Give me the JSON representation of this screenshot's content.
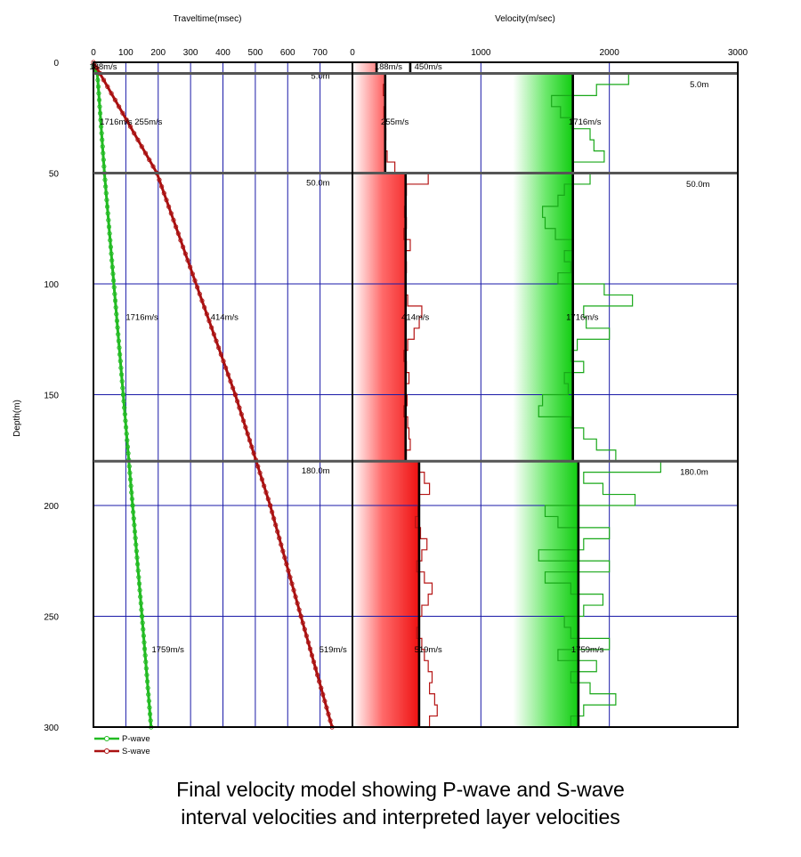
{
  "chart_data": [
    {
      "type": "line",
      "xlabel": "Traveltime(msec)",
      "ylabel": "Depth(m)",
      "xlim": [
        0,
        800
      ],
      "ylim": [
        300,
        0
      ],
      "x_ticks": [
        0,
        100,
        200,
        300,
        400,
        500,
        600,
        700
      ],
      "y_ticks": [
        0,
        50,
        100,
        150,
        200,
        250,
        300
      ],
      "grid": true,
      "legend_position": "bottom-left",
      "series": [
        {
          "name": "P-wave",
          "color": "#22bb22",
          "points": [
            [
              0,
              2
            ],
            [
              12,
              5
            ],
            [
              34,
              50
            ],
            [
              92,
              150
            ],
            [
              121,
              200
            ],
            [
              150,
              250
            ],
            [
              178,
              300
            ]
          ]
        },
        {
          "name": "S-wave",
          "color": "#aa1111",
          "points": [
            [
              0,
              0
            ],
            [
              20,
              5
            ],
            [
              196,
              50
            ],
            [
              438,
              150
            ],
            [
              546,
              200
            ],
            [
              641,
              250
            ],
            [
              737,
              300
            ]
          ]
        }
      ],
      "layer_boundaries": [
        5,
        50,
        180
      ],
      "layer_labels": [
        "5.0m",
        "50.0m",
        "180.0m"
      ],
      "annotations": [
        {
          "text": "188m/s",
          "x": 30,
          "y": 2
        },
        {
          "text": "1716m/s",
          "x": 70,
          "y": 27
        },
        {
          "text": "255m/s",
          "x": 170,
          "y": 27
        },
        {
          "text": "1716m/s",
          "x": 150,
          "y": 115
        },
        {
          "text": "414m/s",
          "x": 405,
          "y": 115
        },
        {
          "text": "1759m/s",
          "x": 230,
          "y": 265
        },
        {
          "text": "519m/s",
          "x": 740,
          "y": 265
        }
      ]
    },
    {
      "type": "line",
      "xlabel": "Velocity(m/sec)",
      "ylabel": "Depth(m)",
      "xlim": [
        0,
        3000
      ],
      "ylim": [
        300,
        0
      ],
      "x_ticks": [
        0,
        1000,
        2000,
        3000
      ],
      "grid": true,
      "layer_velocities": {
        "S-wave": [
          {
            "from": 0,
            "to": 5,
            "value": 188
          },
          {
            "from": 5,
            "to": 50,
            "value": 255
          },
          {
            "from": 50,
            "to": 180,
            "value": 414
          },
          {
            "from": 180,
            "to": 300,
            "value": 519
          }
        ],
        "P-wave": [
          {
            "from": 0,
            "to": 5,
            "value": 450
          },
          {
            "from": 5,
            "to": 50,
            "value": 1716
          },
          {
            "from": 50,
            "to": 180,
            "value": 1716
          },
          {
            "from": 180,
            "to": 300,
            "value": 1759
          }
        ]
      },
      "s_interval_velocity": [
        [
          0,
          188
        ],
        [
          5,
          255
        ],
        [
          10,
          240
        ],
        [
          15,
          250
        ],
        [
          20,
          245
        ],
        [
          25,
          250
        ],
        [
          30,
          260
        ],
        [
          35,
          255
        ],
        [
          40,
          270
        ],
        [
          45,
          330
        ],
        [
          50,
          590
        ],
        [
          55,
          420
        ],
        [
          60,
          410
        ],
        [
          65,
          405
        ],
        [
          70,
          420
        ],
        [
          75,
          400
        ],
        [
          80,
          450
        ],
        [
          85,
          410
        ],
        [
          90,
          420
        ],
        [
          95,
          415
        ],
        [
          100,
          410
        ],
        [
          105,
          430
        ],
        [
          110,
          540
        ],
        [
          115,
          520
        ],
        [
          120,
          480
        ],
        [
          125,
          430
        ],
        [
          130,
          400
        ],
        [
          135,
          420
        ],
        [
          140,
          440
        ],
        [
          145,
          410
        ],
        [
          150,
          425
        ],
        [
          155,
          400
        ],
        [
          160,
          430
        ],
        [
          165,
          440
        ],
        [
          170,
          450
        ],
        [
          175,
          420
        ],
        [
          180,
          520
        ],
        [
          185,
          560
        ],
        [
          190,
          600
        ],
        [
          195,
          520
        ],
        [
          200,
          510
        ],
        [
          205,
          490
        ],
        [
          210,
          530
        ],
        [
          215,
          580
        ],
        [
          220,
          540
        ],
        [
          225,
          500
        ],
        [
          230,
          560
        ],
        [
          235,
          620
        ],
        [
          240,
          590
        ],
        [
          245,
          540
        ],
        [
          250,
          520
        ],
        [
          255,
          500
        ],
        [
          260,
          540
        ],
        [
          265,
          560
        ],
        [
          270,
          590
        ],
        [
          275,
          620
        ],
        [
          280,
          600
        ],
        [
          285,
          640
        ],
        [
          290,
          660
        ],
        [
          295,
          600
        ],
        [
          300,
          580
        ]
      ],
      "p_interval_velocity": [
        [
          0,
          450
        ],
        [
          5,
          2150
        ],
        [
          10,
          1900
        ],
        [
          15,
          1550
        ],
        [
          20,
          1620
        ],
        [
          25,
          1700
        ],
        [
          30,
          1850
        ],
        [
          35,
          1880
        ],
        [
          40,
          1960
        ],
        [
          45,
          1720
        ],
        [
          50,
          1850
        ],
        [
          55,
          1650
        ],
        [
          60,
          1600
        ],
        [
          65,
          1480
        ],
        [
          70,
          1500
        ],
        [
          75,
          1580
        ],
        [
          80,
          1720
        ],
        [
          85,
          1650
        ],
        [
          90,
          1700
        ],
        [
          95,
          1600
        ],
        [
          100,
          1960
        ],
        [
          105,
          2180
        ],
        [
          110,
          1800
        ],
        [
          115,
          1820
        ],
        [
          120,
          2000
        ],
        [
          125,
          1750
        ],
        [
          130,
          1700
        ],
        [
          135,
          1800
        ],
        [
          140,
          1650
        ],
        [
          145,
          1680
        ],
        [
          150,
          1480
        ],
        [
          155,
          1450
        ],
        [
          160,
          1700
        ],
        [
          165,
          1800
        ],
        [
          170,
          1900
        ],
        [
          175,
          2050
        ],
        [
          180,
          2400
        ],
        [
          185,
          1800
        ],
        [
          190,
          1950
        ],
        [
          195,
          2200
        ],
        [
          200,
          1500
        ],
        [
          205,
          1600
        ],
        [
          210,
          2000
        ],
        [
          215,
          1800
        ],
        [
          220,
          1450
        ],
        [
          225,
          2000
        ],
        [
          230,
          1500
        ],
        [
          235,
          1700
        ],
        [
          240,
          1950
        ],
        [
          245,
          1800
        ],
        [
          250,
          1650
        ],
        [
          255,
          1700
        ],
        [
          260,
          2000
        ],
        [
          265,
          1600
        ],
        [
          270,
          1900
        ],
        [
          275,
          1700
        ],
        [
          280,
          1850
        ],
        [
          285,
          2050
        ],
        [
          290,
          1800
        ],
        [
          295,
          1700
        ],
        [
          300,
          1750
        ]
      ],
      "annotations": [
        {
          "text": "188m/s",
          "x": 280,
          "y": 2
        },
        {
          "text": "450m/s",
          "x": 590,
          "y": 2
        },
        {
          "text": "255m/s",
          "x": 330,
          "y": 27
        },
        {
          "text": "1716m/s",
          "x": 1810,
          "y": 27
        },
        {
          "text": "414m/s",
          "x": 490,
          "y": 115
        },
        {
          "text": "1716m/s",
          "x": 1790,
          "y": 115
        },
        {
          "text": "519m/s",
          "x": 590,
          "y": 265
        },
        {
          "text": "1759m/s",
          "x": 1830,
          "y": 265
        },
        {
          "text": "5.0m",
          "x": 2700,
          "y": 10
        },
        {
          "text": "50.0m",
          "x": 2690,
          "y": 55
        },
        {
          "text": "180.0m",
          "x": 2660,
          "y": 185
        }
      ]
    }
  ],
  "caption": {
    "line1": "Final velocity model showing P-wave and S-wave",
    "line2": "interval velocities and interpreted layer velocities"
  }
}
